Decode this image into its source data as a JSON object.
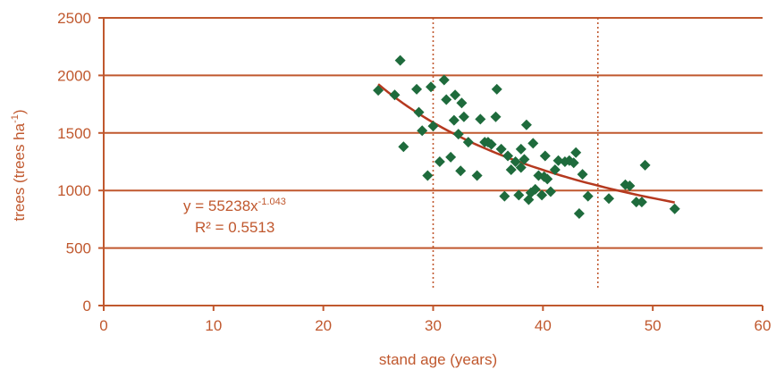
{
  "chart_data": {
    "type": "scatter",
    "xlabel": "stand age (years)",
    "ylabel": {
      "main": "trees (trees ha",
      "sup": "-1",
      "close": ")"
    },
    "xlim": [
      0,
      60
    ],
    "ylim": [
      0,
      2500
    ],
    "x_ticks": [
      0,
      10,
      20,
      30,
      40,
      50,
      60
    ],
    "y_ticks": [
      0,
      500,
      1000,
      1500,
      2000,
      2500
    ],
    "grid": {
      "horizontal": true,
      "vertical": false
    },
    "reference_lines_x": [
      30,
      45
    ],
    "colors": {
      "axis": "#c0582e",
      "points": "#1e6b3c",
      "trend": "#b5391f",
      "text": "#c0582e"
    },
    "trendline": {
      "type": "power",
      "a": 55238,
      "b": -1.043,
      "x_range": [
        25,
        52
      ],
      "equation_text": {
        "prefix": "y = 55238x",
        "exponent": "-1.043"
      },
      "r2_text": "R² = 0.5513"
    },
    "points": [
      [
        25,
        1870
      ],
      [
        26.5,
        1830
      ],
      [
        27,
        2130
      ],
      [
        27.3,
        1380
      ],
      [
        28.5,
        1880
      ],
      [
        28.7,
        1680
      ],
      [
        29,
        1520
      ],
      [
        29.5,
        1130
      ],
      [
        29.8,
        1900
      ],
      [
        30,
        1560
      ],
      [
        30.6,
        1250
      ],
      [
        31,
        1960
      ],
      [
        31.2,
        1790
      ],
      [
        31.6,
        1290
      ],
      [
        31.9,
        1610
      ],
      [
        32,
        1830
      ],
      [
        32.3,
        1490
      ],
      [
        32.5,
        1170
      ],
      [
        32.6,
        1760
      ],
      [
        32.8,
        1640
      ],
      [
        33.2,
        1420
      ],
      [
        34,
        1130
      ],
      [
        34.3,
        1620
      ],
      [
        34.7,
        1420
      ],
      [
        35,
        1420
      ],
      [
        35.3,
        1400
      ],
      [
        35.7,
        1640
      ],
      [
        35.8,
        1880
      ],
      [
        36.2,
        1360
      ],
      [
        36.5,
        950
      ],
      [
        36.8,
        1300
      ],
      [
        37.1,
        1180
      ],
      [
        37.5,
        1250
      ],
      [
        37.8,
        960
      ],
      [
        38,
        1200
      ],
      [
        38,
        1360
      ],
      [
        38.3,
        1270
      ],
      [
        38.5,
        1570
      ],
      [
        38.7,
        920
      ],
      [
        38.9,
        980
      ],
      [
        39.1,
        1410
      ],
      [
        39.3,
        1010
      ],
      [
        39.6,
        1130
      ],
      [
        39.9,
        960
      ],
      [
        40.1,
        1120
      ],
      [
        40.2,
        1300
      ],
      [
        40.4,
        1100
      ],
      [
        40.7,
        990
      ],
      [
        41.1,
        1180
      ],
      [
        41.4,
        1260
      ],
      [
        42,
        1250
      ],
      [
        42.4,
        1260
      ],
      [
        42.8,
        1240
      ],
      [
        43,
        1330
      ],
      [
        43.3,
        800
      ],
      [
        43.6,
        1140
      ],
      [
        44.1,
        950
      ],
      [
        46,
        930
      ],
      [
        47.5,
        1050
      ],
      [
        47.9,
        1040
      ],
      [
        48.5,
        900
      ],
      [
        49,
        900
      ],
      [
        49.3,
        1220
      ],
      [
        52,
        840
      ]
    ]
  }
}
